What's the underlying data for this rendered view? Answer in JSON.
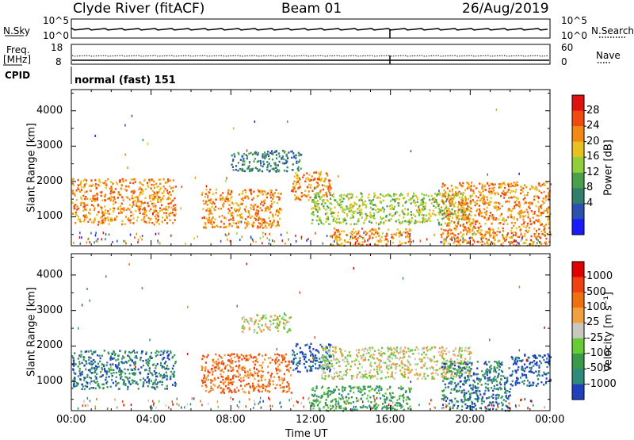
{
  "header": {
    "station": "Clyde River (fitACF)",
    "beam": "Beam 01",
    "date": "26/Aug/2019"
  },
  "aux_panels": {
    "nsky_label": "N.Sky",
    "nsky_ticks": [
      "10^5",
      "10^0"
    ],
    "nsearch_label": "N.Search",
    "nsearch_ticks": [
      "10^5",
      "10^0"
    ],
    "freq_label_1": "Freq.",
    "freq_label_2": "[MHz]",
    "freq_ticks": [
      "18",
      "8"
    ],
    "nave_label": "Nave",
    "nave_ticks": [
      "60",
      "0"
    ],
    "cpid_label": "CPID",
    "cpid_value": "normal (fast) 151"
  },
  "chart_data": [
    {
      "type": "heatmap",
      "name": "power",
      "ylabel": "Slant Range [km]",
      "xlabel": "Time UT",
      "x_ticks": [
        "00:00",
        "04:00",
        "08:00",
        "12:00",
        "16:00",
        "20:00",
        "00:00"
      ],
      "y_ticks": [
        1000,
        2000,
        3000,
        4000
      ],
      "ylim": [
        180,
        4600
      ],
      "xlim_hours": [
        0,
        24
      ],
      "colorbar": {
        "label": "Power [dB]",
        "ticks": [
          "28",
          "24",
          "20",
          "16",
          "12",
          "8",
          "4"
        ],
        "colors": [
          "#1a1aff",
          "#2a50b0",
          "#2f7f6a",
          "#4aa04a",
          "#8ed03a",
          "#e8c020",
          "#f08a10",
          "#f04a10",
          "#e01010"
        ]
      },
      "echo_regions": [
        {
          "t0": 0.0,
          "t1": 5.2,
          "r0": 800,
          "r1": 2100,
          "level": 6
        },
        {
          "t0": 6.5,
          "t1": 10.5,
          "r0": 700,
          "r1": 1800,
          "level": 6
        },
        {
          "t0": 8.0,
          "t1": 11.5,
          "r0": 2300,
          "r1": 2900,
          "level": 2
        },
        {
          "t0": 11.0,
          "t1": 13.0,
          "r0": 1500,
          "r1": 2300,
          "level": 6
        },
        {
          "t0": 12.0,
          "t1": 20.0,
          "r0": 800,
          "r1": 1700,
          "level": 4
        },
        {
          "t0": 13.0,
          "t1": 17.0,
          "r0": 200,
          "r1": 700,
          "level": 6
        },
        {
          "t0": 18.5,
          "t1": 24.0,
          "r0": 200,
          "r1": 2000,
          "level": 6
        }
      ]
    },
    {
      "type": "heatmap",
      "name": "velocity",
      "ylabel": "Slant Range [km]",
      "xlabel": "Time UT",
      "x_ticks": [
        "00:00",
        "04:00",
        "08:00",
        "12:00",
        "16:00",
        "20:00",
        "00:00"
      ],
      "y_ticks": [
        1000,
        2000,
        3000,
        4000
      ],
      "ylim": [
        180,
        4600
      ],
      "xlim_hours": [
        0,
        24
      ],
      "colorbar": {
        "label": "Velocity [m s⁻¹]",
        "ticks": [
          "1000",
          "500",
          "100",
          "25",
          "-25",
          "-100",
          "-500",
          "-1000"
        ],
        "colors": [
          "#2040c0",
          "#2e8a7a",
          "#3a9a4a",
          "#66cc33",
          "#c8c8c0",
          "#f0a040",
          "#f07010",
          "#f04010",
          "#e00000"
        ]
      },
      "echo_regions": [
        {
          "t0": 0.0,
          "t1": 5.2,
          "r0": 800,
          "r1": 1900,
          "level": 1
        },
        {
          "t0": 6.5,
          "t1": 11.0,
          "r0": 700,
          "r1": 1800,
          "level": 6
        },
        {
          "t0": 8.5,
          "t1": 11.0,
          "r0": 2400,
          "r1": 2900,
          "level": 4
        },
        {
          "t0": 11.0,
          "t1": 13.0,
          "r0": 1300,
          "r1": 2100,
          "level": 0
        },
        {
          "t0": 12.5,
          "t1": 20.0,
          "r0": 1100,
          "r1": 2000,
          "level": 4
        },
        {
          "t0": 12.0,
          "t1": 17.0,
          "r0": 200,
          "r1": 900,
          "level": 2
        },
        {
          "t0": 18.5,
          "t1": 22.0,
          "r0": 200,
          "r1": 1600,
          "level": 1
        },
        {
          "t0": 22.0,
          "t1": 24.0,
          "r0": 900,
          "r1": 1800,
          "level": 0
        }
      ]
    }
  ]
}
